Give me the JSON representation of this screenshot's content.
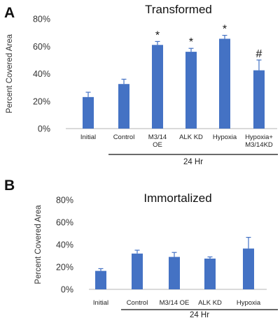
{
  "chart_data": [
    {
      "panel": "A",
      "type": "bar",
      "title": "Transformed",
      "ylabel": "Percent Covered Area",
      "ylim": [
        0,
        80
      ],
      "yticks": [
        "0%",
        "20%",
        "40%",
        "60%",
        "80%"
      ],
      "categories": [
        [
          "Initial"
        ],
        [
          "Control"
        ],
        [
          "M3/14",
          "OE"
        ],
        [
          "ALK KD"
        ],
        [
          "Hypoxia"
        ],
        [
          "Hypoxia+",
          "M3/14KD"
        ]
      ],
      "values": [
        23,
        32.5,
        61,
        56,
        65.5,
        42.5
      ],
      "errors": [
        3.5,
        3.5,
        2.5,
        2.5,
        2.5,
        7.5
      ],
      "annotations": [
        "",
        "",
        "*",
        "*",
        "*",
        "#"
      ],
      "group_label": "24 Hr",
      "bar_color": "#4472c4"
    },
    {
      "panel": "B",
      "type": "bar",
      "title": "Immortalized",
      "ylabel": "Percent Covered Area",
      "ylim": [
        0,
        80
      ],
      "yticks": [
        "0%",
        "20%",
        "40%",
        "60%",
        "80%"
      ],
      "categories": [
        [
          "Initial"
        ],
        [
          "Control"
        ],
        [
          "M3/14 OE"
        ],
        [
          "ALK KD"
        ],
        [
          "Hypoxia"
        ]
      ],
      "values": [
        16.5,
        32,
        29,
        27.5,
        36.5
      ],
      "errors": [
        2,
        3,
        4,
        1.5,
        10
      ],
      "annotations": [
        "",
        "",
        "",
        "",
        ""
      ],
      "group_label": "24 Hr",
      "bar_color": "#4472c4"
    }
  ]
}
